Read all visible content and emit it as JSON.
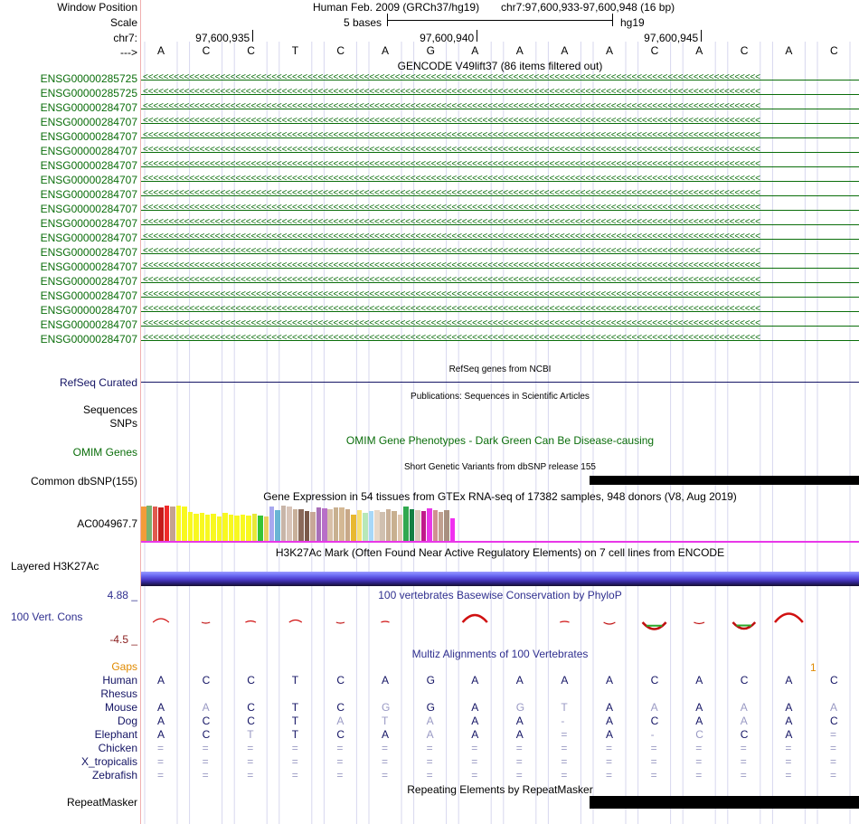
{
  "header": {
    "window_position_label": "Window Position",
    "assembly": "Human Feb. 2009 (GRCh37/hg19)",
    "position": "chr7:97,600,933-97,600,948 (16 bp)",
    "scale_label": "Scale",
    "scale_text": "5 bases",
    "db": "hg19",
    "chrom_label": "chr7:",
    "ticks": [
      "97,600,935",
      "97,600,940",
      "97,600,945"
    ],
    "strand_label": "--->",
    "bases": [
      "A",
      "C",
      "C",
      "T",
      "C",
      "A",
      "G",
      "A",
      "A",
      "A",
      "A",
      "C",
      "A",
      "C",
      "A",
      "C"
    ]
  },
  "gencode": {
    "title": "GENCODE V49lift37 (86 items filtered out)",
    "genes": [
      "ENSG00000285725",
      "ENSG00000285725",
      "ENSG00000284707",
      "ENSG00000284707",
      "ENSG00000284707",
      "ENSG00000284707",
      "ENSG00000284707",
      "ENSG00000284707",
      "ENSG00000284707",
      "ENSG00000284707",
      "ENSG00000284707",
      "ENSG00000284707",
      "ENSG00000284707",
      "ENSG00000284707",
      "ENSG00000284707",
      "ENSG00000284707",
      "ENSG00000284707",
      "ENSG00000284707",
      "ENSG00000284707"
    ],
    "color": "#0b6e0b"
  },
  "refseq": {
    "title": "RefSeq genes from NCBI",
    "label": "RefSeq Curated"
  },
  "publications": {
    "title": "Publications: Sequences in Scientific Articles",
    "labels": [
      "Sequences",
      "SNPs"
    ]
  },
  "omim": {
    "label": "OMIM Genes",
    "title": "OMIM Gene Phenotypes - Dark Green Can Be Disease-causing"
  },
  "dbsnp": {
    "title": "Short Genetic Variants from dbSNP release 155",
    "label": "Common dbSNP(155)"
  },
  "gtex": {
    "title": "Gene Expression in 54 tissues from GTEx RNA-seq of 17382 samples, 948 donors (V8, Aug 2019)",
    "label": "AC004967.7",
    "values": [
      0.95,
      0.98,
      0.95,
      0.92,
      0.98,
      0.95,
      0.97,
      0.95,
      0.8,
      0.75,
      0.78,
      0.72,
      0.74,
      0.68,
      0.78,
      0.72,
      0.7,
      0.73,
      0.71,
      0.76,
      0.71,
      0.68,
      0.95,
      0.85,
      0.98,
      0.95,
      0.88,
      0.88,
      0.82,
      0.8,
      0.92,
      0.9,
      0.88,
      0.93,
      0.92,
      0.88,
      0.72,
      0.85,
      0.78,
      0.82,
      0.85,
      0.8,
      0.88,
      0.82,
      0.72,
      0.95,
      0.88,
      0.86,
      0.82,
      0.89,
      0.85,
      0.8,
      0.85,
      0.62
    ],
    "colors": [
      "#f39c39",
      "#7ab26f",
      "#e05a4e",
      "#c51a1a",
      "#f02929",
      "#c4a28f",
      "#f8f820",
      "#f8f820",
      "#f8f820",
      "#f8f820",
      "#f8f820",
      "#f8f820",
      "#f8f820",
      "#f8f820",
      "#f8f820",
      "#f8f820",
      "#f8f820",
      "#f8f820",
      "#f8f820",
      "#e8e838",
      "#35c435",
      "#e8d060",
      "#a8a8ef",
      "#6ab5d4",
      "#c8b5a8",
      "#d8c4b8",
      "#c8b09a",
      "#8a6a5a",
      "#7a5a4a",
      "#c8a898",
      "#a86fb8",
      "#b86fc8",
      "#d8c0a8",
      "#c8b090",
      "#d4b894",
      "#c8a888",
      "#e8b830",
      "#f8e070",
      "#b8e8b8",
      "#a8d8f8",
      "#e8d8c8",
      "#d0c0b0",
      "#c8b098",
      "#c8b090",
      "#e0c8b0",
      "#30a850",
      "#137f43",
      "#d8c8b8",
      "#c01a8a",
      "#e838e8",
      "#d09090",
      "#c0a090",
      "#a89080",
      "#f030f0"
    ]
  },
  "h3k27ac": {
    "title": "H3K27Ac Mark (Often Found Near Active Regulatory Elements) on 7 cell lines from ENCODE",
    "label": "Layered H3K27Ac"
  },
  "phylop": {
    "title": "100 vertebrates Basewise Conservation by PhyloP",
    "label": "100 Vert. Cons",
    "max": "4.88 _",
    "min": "-4.5 _",
    "scores": [
      0.8,
      -0.1,
      0.3,
      0.5,
      -0.1,
      0.1,
      0.0,
      1.6,
      0.0,
      0.2,
      -0.4,
      -1.5,
      -0.3,
      -1.4,
      1.9,
      0.0
    ]
  },
  "multiz": {
    "title": "Multiz Alignments of 100 Vertebrates",
    "gaps_label": "Gaps",
    "gaps_mark": "1",
    "species": [
      {
        "name": "Human",
        "seq": [
          "A",
          "C",
          "C",
          "T",
          "C",
          "A",
          "G",
          "A",
          "A",
          "A",
          "A",
          "C",
          "A",
          "C",
          "A",
          "C"
        ]
      },
      {
        "name": "Rhesus",
        "seq": []
      },
      {
        "name": "Mouse",
        "seq": [
          "A",
          "A",
          "C",
          "T",
          "C",
          "G",
          "G",
          "A",
          "G",
          "T",
          "A",
          "A",
          "A",
          "A",
          "A",
          "A"
        ]
      },
      {
        "name": "Dog",
        "seq": [
          "A",
          "C",
          "C",
          "T",
          "A",
          "T",
          "A",
          "A",
          "A",
          "-",
          "A",
          "C",
          "A",
          "A",
          "A",
          "C"
        ]
      },
      {
        "name": "Elephant",
        "seq": [
          "A",
          "C",
          "T",
          "T",
          "C",
          "A",
          "A",
          "A",
          "A",
          "=",
          "A",
          "-",
          "C",
          "C",
          "A",
          "="
        ]
      },
      {
        "name": "Chicken",
        "seq": [
          "=",
          "=",
          "=",
          "=",
          "=",
          "=",
          "=",
          "=",
          "=",
          "=",
          "=",
          "=",
          "=",
          "=",
          "=",
          "="
        ]
      },
      {
        "name": "X_tropicalis",
        "seq": [
          "=",
          "=",
          "=",
          "=",
          "=",
          "=",
          "=",
          "=",
          "=",
          "=",
          "=",
          "=",
          "=",
          "=",
          "=",
          "="
        ]
      },
      {
        "name": "Zebrafish",
        "seq": [
          "=",
          "=",
          "=",
          "=",
          "=",
          "=",
          "=",
          "=",
          "=",
          "=",
          "=",
          "=",
          "=",
          "=",
          "=",
          "="
        ]
      }
    ]
  },
  "repeatmasker": {
    "title": "Repeating Elements by RepeatMasker",
    "label": "RepeatMasker"
  }
}
